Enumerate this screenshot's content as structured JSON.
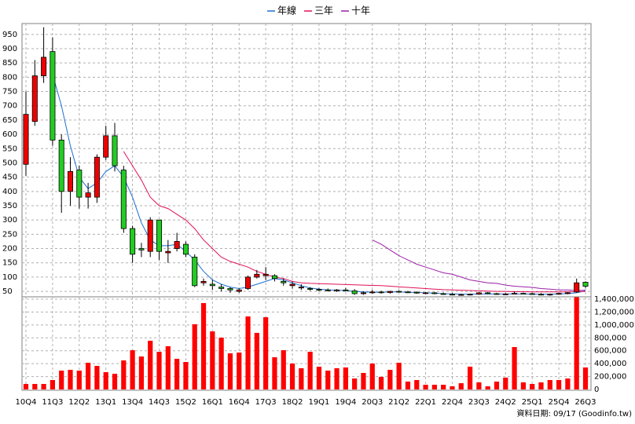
{
  "chart_data": {
    "type": "candlestick",
    "annotation": "資料日期: 09/17  (Goodinfo.tw)",
    "categories": [
      "10Q4",
      null,
      null,
      "11Q3",
      null,
      null,
      "12Q2",
      null,
      null,
      "13Q1",
      null,
      null,
      "13Q4",
      null,
      null,
      "14Q3",
      null,
      null,
      "15Q2",
      null,
      null,
      "16Q1",
      null,
      null,
      "16Q4",
      null,
      null,
      "17Q3",
      null,
      null,
      "18Q2",
      null,
      null,
      "19Q1",
      null,
      null,
      "19Q4",
      null,
      null,
      "20Q3",
      null,
      null,
      "21Q2",
      null,
      null,
      "22Q1",
      null,
      null,
      "22Q4",
      null,
      null,
      "23Q3",
      null,
      null,
      "24Q2",
      null,
      null,
      "25Q1",
      null,
      null,
      "25Q4",
      null,
      null,
      "26Q3"
    ],
    "open": [
      495,
      645,
      805,
      890,
      580,
      400,
      475,
      380,
      380,
      520,
      595,
      475,
      270,
      200,
      190,
      300,
      185,
      200,
      215,
      170,
      80,
      75,
      65,
      60,
      50,
      60,
      100,
      105,
      105,
      85,
      70,
      62,
      60,
      57,
      55,
      53,
      55,
      52,
      42,
      45,
      48,
      46,
      50,
      48,
      47,
      44,
      45,
      42,
      40,
      38,
      39,
      40,
      45,
      42,
      40,
      41,
      43,
      42,
      40,
      38,
      40,
      43,
      48,
      82
    ],
    "high": [
      750,
      860,
      975,
      940,
      600,
      520,
      490,
      430,
      530,
      630,
      640,
      490,
      280,
      220,
      310,
      300,
      230,
      255,
      225,
      180,
      95,
      90,
      75,
      65,
      60,
      105,
      125,
      135,
      110,
      95,
      85,
      75,
      65,
      62,
      60,
      58,
      62,
      58,
      50,
      55,
      52,
      52,
      54,
      52,
      50,
      48,
      48,
      46,
      44,
      42,
      42,
      48,
      48,
      45,
      44,
      50,
      46,
      45,
      44,
      42,
      45,
      48,
      95,
      85
    ],
    "low": [
      455,
      630,
      780,
      560,
      325,
      350,
      340,
      340,
      360,
      510,
      470,
      255,
      150,
      170,
      170,
      160,
      150,
      190,
      170,
      65,
      70,
      55,
      50,
      45,
      45,
      55,
      95,
      90,
      85,
      70,
      60,
      55,
      52,
      50,
      50,
      48,
      50,
      38,
      38,
      42,
      42,
      42,
      46,
      44,
      42,
      40,
      40,
      38,
      36,
      35,
      36,
      38,
      40,
      38,
      37,
      40,
      40,
      38,
      36,
      35,
      38,
      40,
      45,
      62
    ],
    "close": [
      670,
      805,
      870,
      580,
      400,
      470,
      380,
      395,
      520,
      595,
      490,
      270,
      180,
      195,
      300,
      190,
      190,
      225,
      180,
      70,
      85,
      70,
      60,
      55,
      55,
      100,
      110,
      110,
      95,
      80,
      75,
      65,
      57,
      55,
      53,
      55,
      52,
      42,
      45,
      48,
      46,
      50,
      48,
      47,
      44,
      45,
      42,
      40,
      38,
      39,
      40,
      45,
      42,
      40,
      41,
      43,
      42,
      40,
      38,
      40,
      43,
      45,
      80,
      68
    ],
    "up_color": "#ee0000",
    "down_color": "#22cc22",
    "volume": [
      85000,
      85000,
      85000,
      146000,
      292000,
      304000,
      292000,
      414000,
      365000,
      268000,
      243000,
      450000,
      609000,
      511000,
      755000,
      584000,
      670000,
      475000,
      426000,
      1010000,
      1339000,
      900000,
      803000,
      560000,
      572000,
      1132000,
      877000,
      1120000,
      499000,
      609000,
      402000,
      329000,
      584000,
      353000,
      292000,
      329000,
      341000,
      170000,
      256000,
      402000,
      195000,
      304000,
      414000,
      122000,
      146000,
      73000,
      73000,
      73000,
      49000,
      97000,
      353000,
      110000,
      49000,
      122000,
      183000,
      657000,
      110000,
      85000,
      110000,
      146000,
      146000,
      170000,
      1430000,
      341000
    ],
    "volume_color": "#ff0000",
    "lines": [
      {
        "name": "年線",
        "color": "#1a6fd0",
        "values": [
          null,
          null,
          null,
          810,
          700,
          560,
          450,
          410,
          430,
          470,
          490,
          450,
          380,
          290,
          230,
          210,
          210,
          215,
          190,
          160,
          120,
          90,
          75,
          65,
          60,
          65,
          75,
          85,
          95,
          90,
          80,
          70,
          62,
          58,
          55,
          54,
          53,
          50,
          48,
          47,
          47,
          48,
          48,
          47,
          46,
          45,
          44,
          42,
          41,
          40,
          40,
          41,
          41,
          41,
          41,
          41,
          41,
          40,
          40,
          40,
          41,
          42,
          45,
          52
        ]
      },
      {
        "name": "三年",
        "color": "#e0105a",
        "values": [
          null,
          null,
          null,
          null,
          null,
          null,
          null,
          null,
          null,
          null,
          null,
          540,
          490,
          440,
          380,
          350,
          340,
          320,
          300,
          270,
          230,
          200,
          170,
          155,
          145,
          135,
          120,
          110,
          100,
          95,
          85,
          80,
          78,
          77,
          76,
          75,
          74,
          73,
          72,
          71,
          70,
          68,
          66,
          64,
          62,
          60,
          58,
          56,
          55,
          54,
          53,
          52,
          51,
          50,
          50,
          49,
          49,
          48,
          48,
          48,
          48,
          48,
          49,
          50
        ]
      },
      {
        "name": "十年",
        "color": "#9b1fa8",
        "values": [
          null,
          null,
          null,
          null,
          null,
          null,
          null,
          null,
          null,
          null,
          null,
          null,
          null,
          null,
          null,
          null,
          null,
          null,
          null,
          null,
          null,
          null,
          null,
          null,
          null,
          null,
          null,
          null,
          null,
          null,
          null,
          null,
          null,
          null,
          null,
          null,
          null,
          null,
          null,
          230,
          215,
          195,
          175,
          160,
          145,
          135,
          125,
          115,
          110,
          100,
          90,
          85,
          80,
          78,
          72,
          68,
          66,
          64,
          60,
          58,
          55,
          55,
          53,
          54
        ]
      }
    ],
    "ylim": [
      31,
      988
    ],
    "yticks": [
      50,
      100,
      150,
      200,
      250,
      300,
      350,
      400,
      450,
      500,
      550,
      600,
      650,
      700,
      750,
      800,
      850,
      900,
      950
    ],
    "y2lim": [
      0,
      1436000
    ],
    "y2ticks": [
      0,
      {
        "value": 200000,
        "label": "200,000"
      },
      {
        "value": 400000,
        "label": "400,000"
      },
      {
        "value": 600000,
        "label": "600,000"
      },
      {
        "value": 800000,
        "label": "800,000"
      },
      {
        "value": 1000000,
        "label": "1,000,000"
      },
      {
        "value": 1200000,
        "label": "1,200,000"
      },
      {
        "value": 1400000,
        "label": "1,400,000"
      }
    ],
    "grid": true
  }
}
